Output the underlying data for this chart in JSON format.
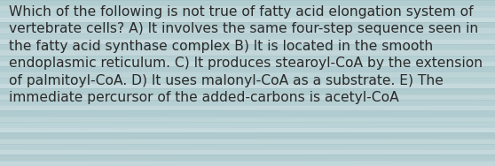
{
  "text": "Which of the following is not true of fatty acid elongation system of vertebrate cells? A) It involves the same four-step sequence seen in the fatty acid synthase complex B) It is located in the smooth endoplasmic reticulum. C) It produces stearoyl-CoA by the extension of palmitoyl-CoA. D) It uses malonyl-CoA as a substrate. E) The immediate percursor of the added-carbons is acetyl-CoA",
  "bg_base_color": "#b8d0d4",
  "text_color": "#2a2a2a",
  "font_size": 11.2,
  "fig_width": 5.58,
  "fig_height": 1.88
}
